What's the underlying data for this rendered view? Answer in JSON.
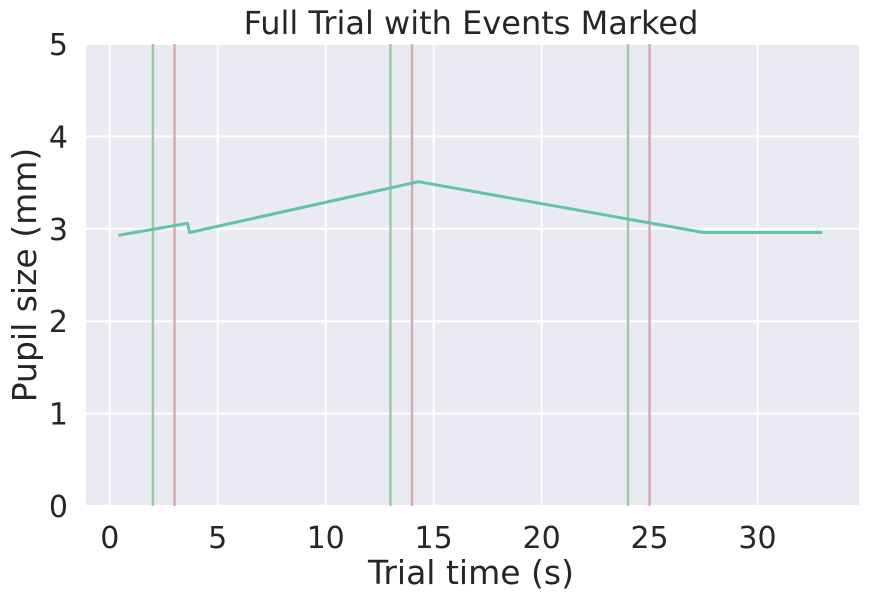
{
  "chart_data": {
    "type": "line",
    "title": "Full Trial with Events Marked",
    "xlabel": "Trial time (s)",
    "ylabel": "Pupil size (mm)",
    "xlim": [
      -1.1,
      34.7
    ],
    "ylim": [
      0,
      5
    ],
    "xticks": [
      0,
      5,
      10,
      15,
      20,
      25,
      30
    ],
    "yticks": [
      0,
      1,
      2,
      3,
      4,
      5
    ],
    "grid": true,
    "background": "#EAEAF2",
    "series": [
      {
        "color": "#66C2A5",
        "x": [
          0.4,
          3.6,
          3.7,
          14.3,
          27.5,
          33.0
        ],
        "y": [
          2.93,
          3.06,
          2.96,
          3.51,
          2.96,
          2.96
        ]
      }
    ],
    "event_lines": [
      {
        "x": 2.0,
        "color": "#9DC9A8"
      },
      {
        "x": 3.0,
        "color": "#D8A9AE"
      },
      {
        "x": 13.0,
        "color": "#9DC9A8"
      },
      {
        "x": 14.0,
        "color": "#D8A9AE"
      },
      {
        "x": 24.0,
        "color": "#9DC9A8"
      },
      {
        "x": 25.0,
        "color": "#D8A9AE"
      }
    ]
  }
}
